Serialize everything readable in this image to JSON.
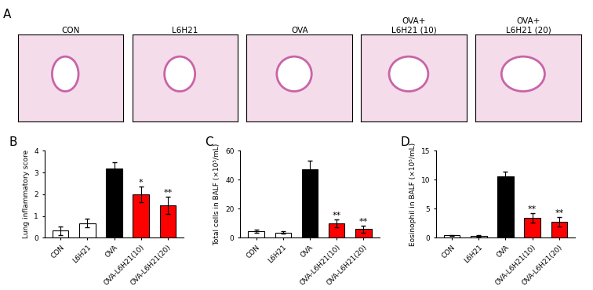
{
  "panel_labels": [
    "A",
    "B",
    "C",
    "D"
  ],
  "images": {
    "titles": [
      "CON",
      "L6H21",
      "OVA",
      "OVA+\nL6H21 (10)",
      "OVA+\nL6H21 (20)"
    ]
  },
  "chart_data": [
    {
      "type": "bar",
      "y_label": "Lung inflammatory score",
      "categories": [
        "CON",
        "L6H21",
        "OVA",
        "OVA-L6H21(10)",
        "OVA-L6H21(20)"
      ],
      "values": [
        0.33,
        0.67,
        3.17,
        2.0,
        1.5
      ],
      "errors": [
        0.2,
        0.2,
        0.3,
        0.35,
        0.4
      ],
      "annotations": [
        null,
        null,
        null,
        "*",
        "**"
      ],
      "colors": [
        "#ffffff",
        "#ffffff",
        "#000000",
        "#ff0000",
        "#ff0000"
      ],
      "ylim": [
        0,
        4
      ],
      "yticks": [
        0,
        1,
        2,
        3,
        4
      ]
    },
    {
      "type": "bar",
      "y_label": "Total cells in BALF (×10⁵/mL)",
      "categories": [
        "CON",
        "L6H21",
        "OVA",
        "OVA-L6H21(10)",
        "OVA-L6H21(20)"
      ],
      "values": [
        4.5,
        3.5,
        47,
        10,
        6
      ],
      "errors": [
        1,
        0.8,
        6,
        2.5,
        2.5
      ],
      "annotations": [
        null,
        null,
        null,
        "**",
        "**"
      ],
      "colors": [
        "#ffffff",
        "#ffffff",
        "#000000",
        "#ff0000",
        "#ff0000"
      ],
      "ylim": [
        0,
        60
      ],
      "yticks": [
        0,
        20,
        40,
        60
      ]
    },
    {
      "type": "bar",
      "y_label": "Eosinophil in BALF (×10⁵/mL)",
      "categories": [
        "CON",
        "L6H21",
        "OVA",
        "OVA-L6H21(10)",
        "OVA-L6H21(20)"
      ],
      "values": [
        0.4,
        0.35,
        10.6,
        3.4,
        2.8
      ],
      "errors": [
        0.1,
        0.1,
        0.8,
        0.8,
        0.8
      ],
      "annotations": [
        null,
        null,
        null,
        "**",
        "**"
      ],
      "colors": [
        "#ffffff",
        "#ffffff",
        "#000000",
        "#ff0000",
        "#ff0000"
      ],
      "ylim": [
        0,
        15
      ],
      "yticks": [
        0,
        5,
        10,
        15
      ]
    }
  ]
}
